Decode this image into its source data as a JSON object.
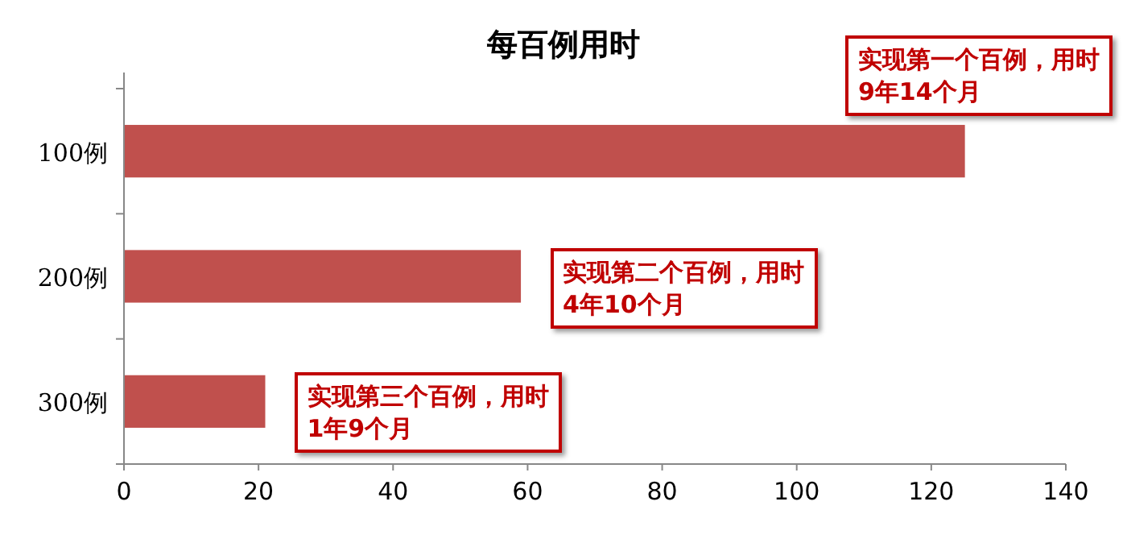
{
  "chart_data": {
    "type": "bar",
    "orientation": "horizontal",
    "title": "每百例用时",
    "categories": [
      "100例",
      "200例",
      "300例"
    ],
    "values": [
      125,
      59,
      21
    ],
    "color": "#c0504d",
    "xlim": [
      0,
      140
    ],
    "xticks": [
      0,
      20,
      40,
      60,
      80,
      100,
      120,
      140
    ],
    "grid": false,
    "annotations": [
      {
        "text": "实现第一个百例，用时9年14个月",
        "x": 125,
        "y": "100例"
      },
      {
        "text": "实现第二个百例，用时4年10个月",
        "x": 59,
        "y": "200例"
      },
      {
        "text": "实现第三个百例，用时1年9个月",
        "x": 21,
        "y": "300例"
      }
    ]
  }
}
